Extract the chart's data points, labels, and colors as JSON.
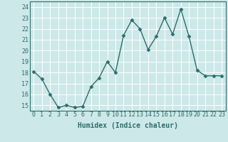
{
  "x": [
    0,
    1,
    2,
    3,
    4,
    5,
    6,
    7,
    8,
    9,
    10,
    11,
    12,
    13,
    14,
    15,
    16,
    17,
    18,
    19,
    20,
    21,
    22,
    23
  ],
  "y": [
    18.1,
    17.4,
    16.0,
    14.8,
    15.0,
    14.8,
    14.9,
    16.7,
    17.5,
    19.0,
    18.0,
    21.4,
    22.8,
    22.0,
    20.1,
    21.3,
    23.0,
    21.5,
    23.8,
    21.3,
    18.2,
    17.7,
    17.7,
    17.7
  ],
  "xlabel": "Humidex (Indice chaleur)",
  "ylim": [
    14.5,
    24.5
  ],
  "xlim": [
    -0.5,
    23.5
  ],
  "yticks": [
    15,
    16,
    17,
    18,
    19,
    20,
    21,
    22,
    23,
    24
  ],
  "xticks": [
    0,
    1,
    2,
    3,
    4,
    5,
    6,
    7,
    8,
    9,
    10,
    11,
    12,
    13,
    14,
    15,
    16,
    17,
    18,
    19,
    20,
    21,
    22,
    23
  ],
  "line_color": "#2e6d6d",
  "marker": "D",
  "marker_size": 2.5,
  "bg_color": "#cde8e8",
  "grid_color": "#b0d8d8",
  "label_fontsize": 7,
  "tick_fontsize": 6,
  "linewidth": 1.0
}
